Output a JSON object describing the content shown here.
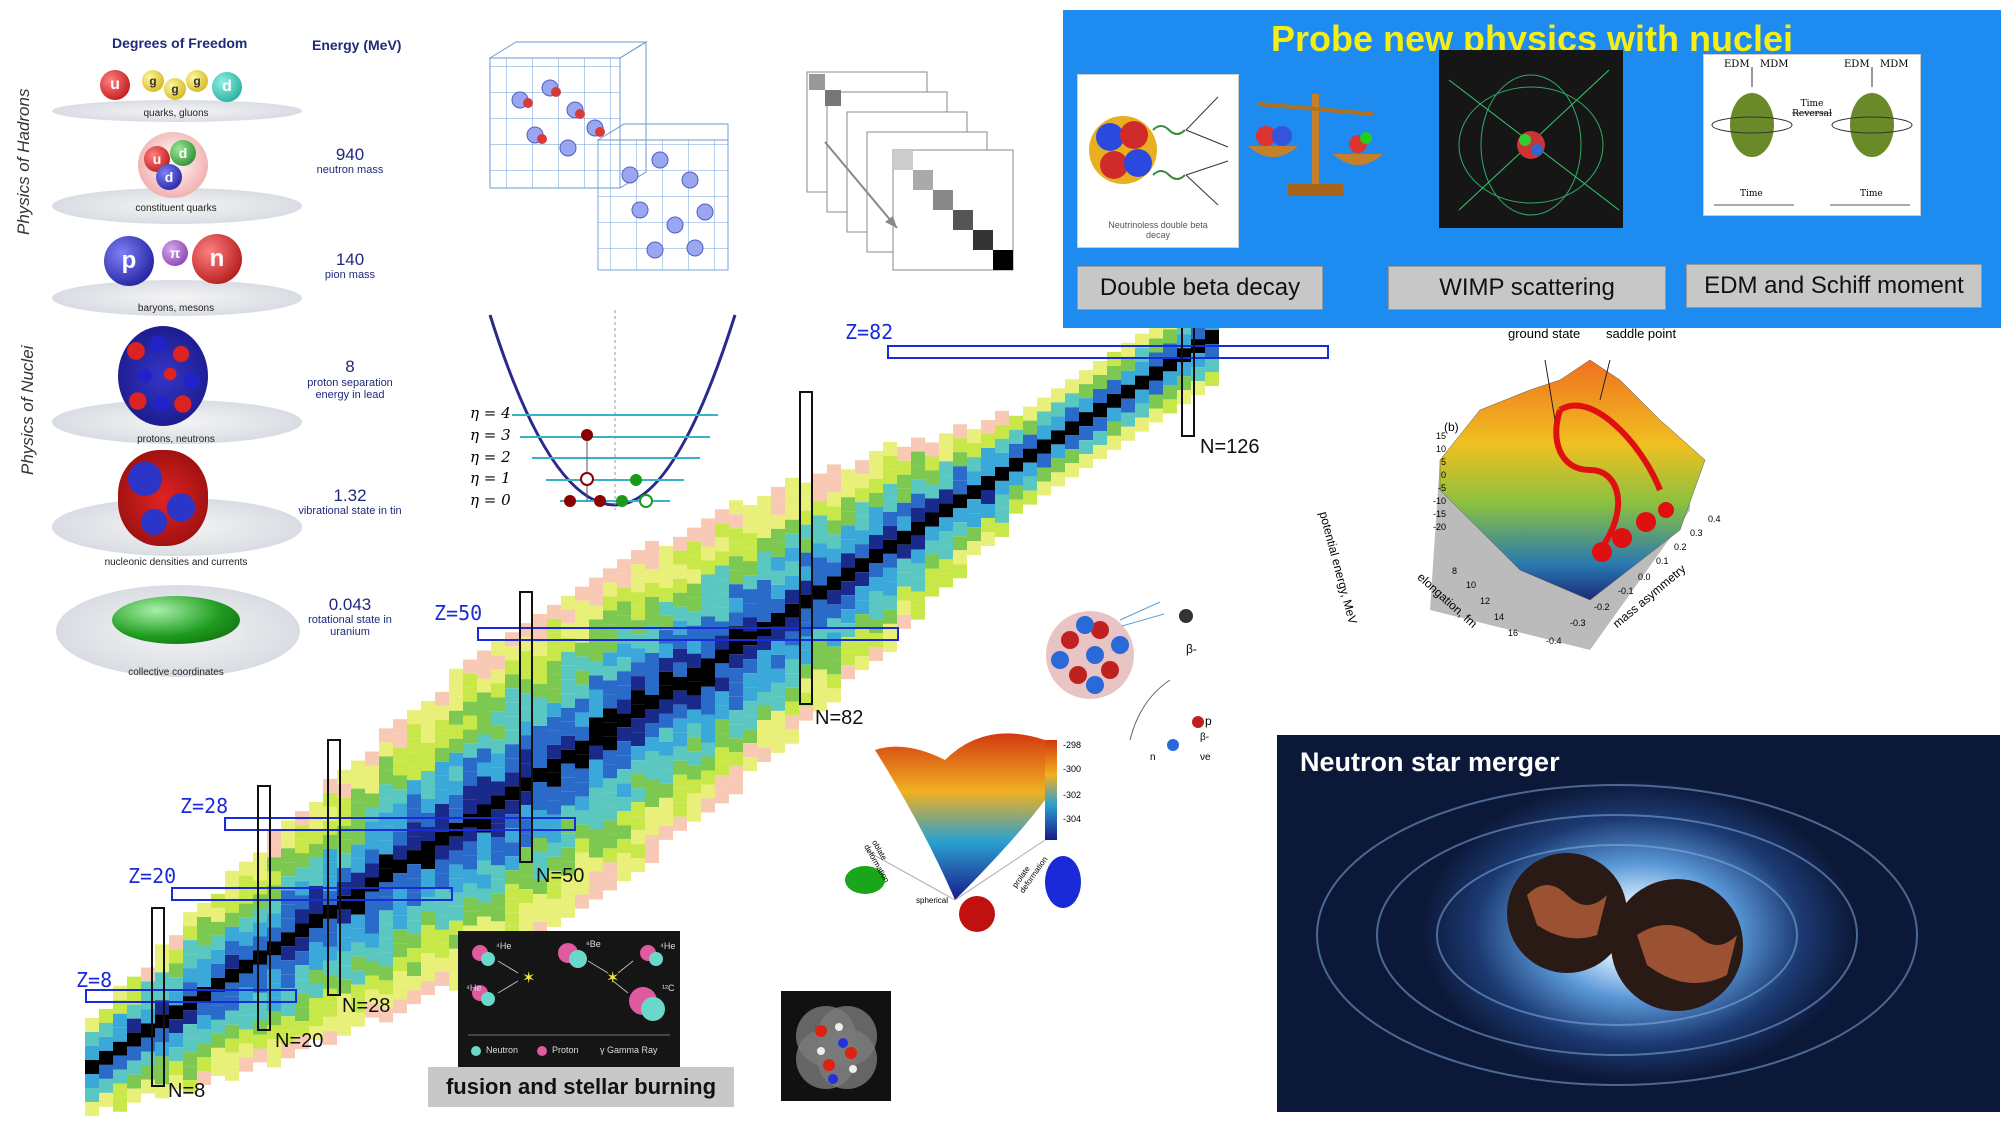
{
  "hierarchy": {
    "col_dof": "Degrees of Freedom",
    "col_energy": "Energy (MeV)",
    "side_hadrons": "Physics of Hadrons",
    "side_nuclei": "Physics of Nuclei",
    "levels": [
      {
        "label": "quarks, gluons",
        "energy": "",
        "desc": ""
      },
      {
        "label": "constituent quarks",
        "energy": "940",
        "desc": "neutron mass"
      },
      {
        "label": "baryons, mesons",
        "energy": "140",
        "desc": "pion mass"
      },
      {
        "label": "protons, neutrons",
        "energy": "8",
        "desc": "proton separation energy in lead"
      },
      {
        "label": "nucleonic densities and currents",
        "energy": "1.32",
        "desc": "vibrational state in tin"
      },
      {
        "label": "collective coordinates",
        "energy": "0.043",
        "desc": "rotational state in uranium"
      }
    ],
    "quark_letters": [
      "u",
      "g",
      "g",
      "g",
      "d"
    ],
    "constituent_letters": [
      "u",
      "d",
      "d"
    ],
    "hadron_letters": [
      "p",
      "π",
      "n"
    ]
  },
  "oscillator": {
    "levels": [
      "η = 4",
      "η = 3",
      "η = 2",
      "η = 1",
      "η = 0"
    ]
  },
  "chart": {
    "z_labels": [
      "Z=82",
      "Z=50",
      "Z=28",
      "Z=20",
      "Z=8"
    ],
    "n_labels": [
      "N=126",
      "N=82",
      "N=50",
      "N=28",
      "N=20",
      "N=8"
    ]
  },
  "probe": {
    "title": "Probe new physics with nuclei",
    "buttons": [
      "Double beta decay",
      "WIMP scattering",
      "EDM and Schiff moment"
    ],
    "dbd_caption": "Neutrinoless double beta decay",
    "edm_labels": [
      "EDM",
      "MDM",
      "Time Reversal",
      "Time"
    ]
  },
  "pes": {
    "panel": "(b)",
    "ground": "ground state",
    "saddle": "saddle point",
    "zlabel": "potential energy, MeV",
    "xlabel": "elongation, fm",
    "ylabel": "mass asymmetry",
    "zticks": [
      "15",
      "10",
      "5",
      "0",
      "-5",
      "-10",
      "-15",
      "-20"
    ],
    "xticks": [
      "8",
      "10",
      "12",
      "14",
      "16"
    ],
    "yticks": [
      "0.4",
      "0.3",
      "0.2",
      "0.1",
      "0.0",
      "-0.1",
      "-0.2",
      "-0.3",
      "-0.4"
    ]
  },
  "deform": {
    "scale": [
      "-298",
      "-300",
      "-302",
      "-304"
    ],
    "axes": [
      "oblate deformation",
      "spherical",
      "prolate deformation"
    ],
    "decay_labels": [
      "β-",
      "p",
      "β-",
      "n",
      "νe"
    ]
  },
  "fusion": {
    "caption": "fusion and stellar burning",
    "nuclei": [
      "⁴He",
      "⁸Be",
      "⁴He",
      "⁴He",
      "¹²C"
    ],
    "legend": [
      "Neutron",
      "Proton",
      "γ Gamma Ray"
    ]
  },
  "merger": {
    "title": "Neutron star merger"
  }
}
